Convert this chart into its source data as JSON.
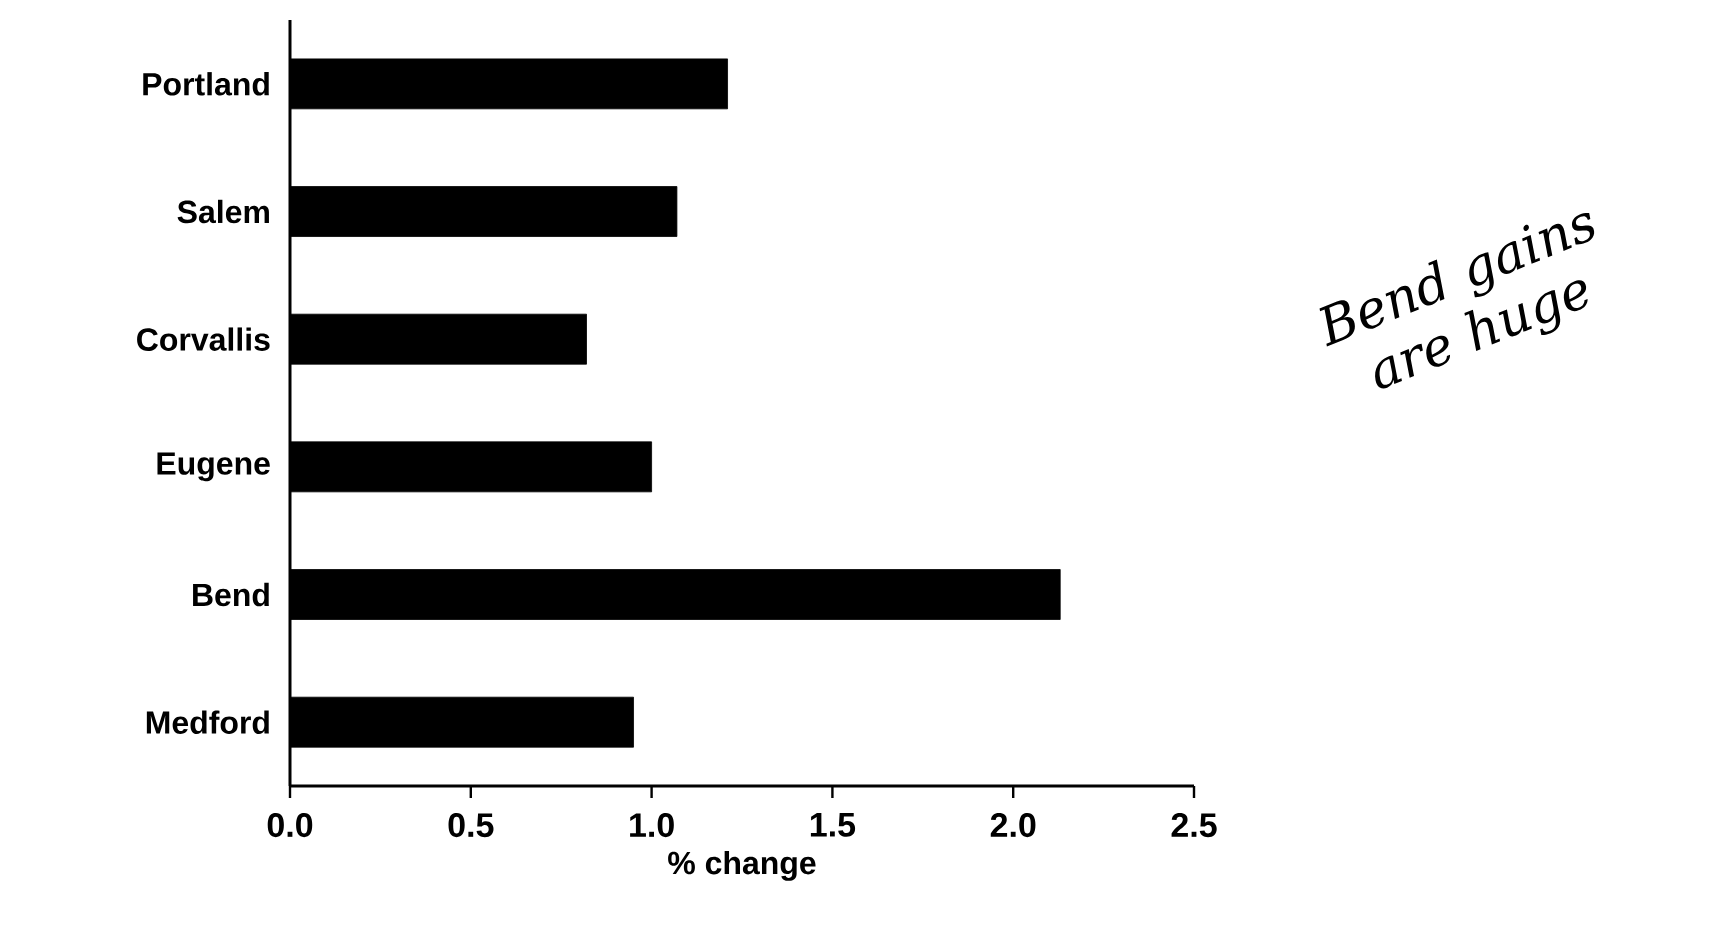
{
  "chart_data": {
    "type": "bar",
    "orientation": "horizontal",
    "xlabel": "% change",
    "categories": [
      "Portland",
      "Salem",
      "Corvallis",
      "Eugene",
      "Bend",
      "Medford"
    ],
    "values": [
      1.21,
      1.07,
      0.82,
      1.0,
      2.13,
      0.95
    ],
    "color": "#000000",
    "xlim": [
      0,
      2.5
    ],
    "xticks": [
      {
        "value": 0,
        "label": "0.0"
      },
      {
        "value": 0.5,
        "label": "0.5"
      },
      {
        "value": 1,
        "label": "1.0"
      },
      {
        "value": 1.5,
        "label": "1.5"
      },
      {
        "value": 2,
        "label": "2.0"
      },
      {
        "value": 2.5,
        "label": "2.5"
      }
    ],
    "annotations": [
      "Bend gains are huge"
    ]
  }
}
